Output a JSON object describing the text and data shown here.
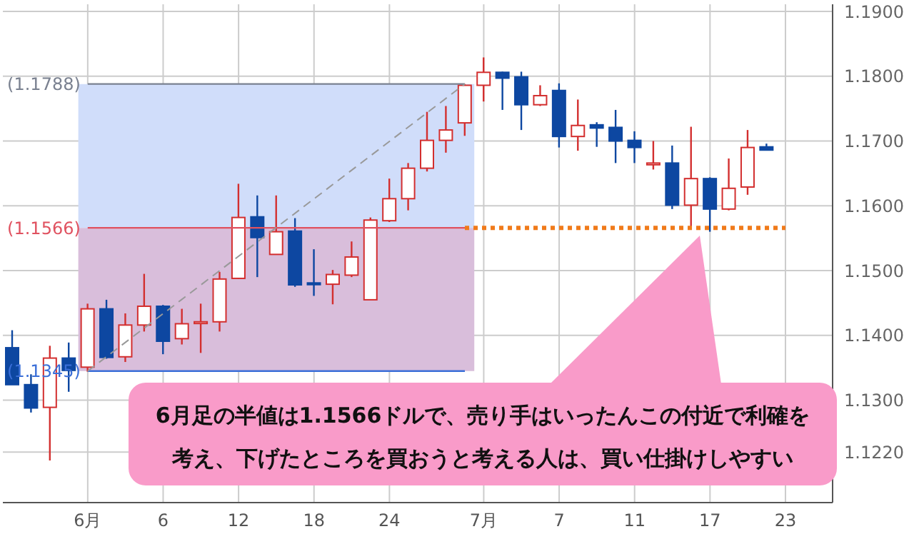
{
  "chart_data": {
    "type": "candlestick",
    "categories": [
      null,
      null,
      null,
      null,
      "6月",
      null,
      null,
      null,
      "6",
      null,
      null,
      null,
      "12",
      null,
      null,
      null,
      "18",
      null,
      null,
      null,
      "24",
      null,
      null,
      null,
      null,
      "7月",
      null,
      null,
      null,
      "7",
      null,
      null,
      null,
      "11",
      null,
      null,
      null,
      "17",
      null,
      null,
      null,
      "23",
      null,
      null
    ],
    "ohlc": [
      [
        1.1381,
        1.1408,
        1.1324,
        1.1324
      ],
      [
        1.1324,
        1.134,
        1.1281,
        1.1288
      ],
      [
        1.1289,
        1.1384,
        1.1207,
        1.1365
      ],
      [
        1.1365,
        1.1389,
        1.1313,
        1.1346
      ],
      [
        1.1351,
        1.1449,
        1.1344,
        1.1441
      ],
      [
        1.1441,
        1.1455,
        1.1364,
        1.1366
      ],
      [
        1.1367,
        1.1434,
        1.1359,
        1.1416
      ],
      [
        1.1416,
        1.1495,
        1.1406,
        1.1445
      ],
      [
        1.1445,
        1.1447,
        1.1371,
        1.1391
      ],
      [
        1.1395,
        1.1441,
        1.1386,
        1.1418
      ],
      [
        1.142,
        1.1449,
        1.1373,
        1.1421
      ],
      [
        1.1421,
        1.1498,
        1.1406,
        1.1487
      ],
      [
        1.1488,
        1.1634,
        1.1487,
        1.1582
      ],
      [
        1.1583,
        1.1616,
        1.149,
        1.1551
      ],
      [
        1.1525,
        1.1616,
        1.1525,
        1.156
      ],
      [
        1.1561,
        1.1581,
        1.1475,
        1.1478
      ],
      [
        1.1481,
        1.1533,
        1.1461,
        1.1479
      ],
      [
        1.1479,
        1.1501,
        1.1448,
        1.1494
      ],
      [
        1.1493,
        1.1545,
        1.149,
        1.1521
      ],
      [
        1.1455,
        1.1582,
        1.1455,
        1.1578
      ],
      [
        1.1577,
        1.1642,
        1.1575,
        1.1611
      ],
      [
        1.1611,
        1.1666,
        1.1593,
        1.1658
      ],
      [
        1.1658,
        1.1745,
        1.1653,
        1.1701
      ],
      [
        1.1701,
        1.1754,
        1.1682,
        1.1717
      ],
      [
        1.1728,
        1.1788,
        1.1708,
        1.1786
      ],
      [
        1.1786,
        1.1829,
        1.1761,
        1.1806
      ],
      [
        1.1806,
        1.1807,
        1.1748,
        1.1797
      ],
      [
        1.1799,
        1.1807,
        1.1717,
        1.1756
      ],
      [
        1.1756,
        1.1786,
        1.1754,
        1.177
      ],
      [
        1.1778,
        1.1789,
        1.169,
        1.1707
      ],
      [
        1.1707,
        1.1764,
        1.1685,
        1.1724
      ],
      [
        1.1725,
        1.1729,
        1.1691,
        1.172
      ],
      [
        1.1721,
        1.1748,
        1.1666,
        1.17
      ],
      [
        1.1701,
        1.1715,
        1.1666,
        1.169
      ],
      [
        1.1665,
        1.17,
        1.1656,
        1.1666
      ],
      [
        1.1666,
        1.1693,
        1.1595,
        1.1601
      ],
      [
        1.1601,
        1.1722,
        1.1563,
        1.1642
      ],
      [
        1.1642,
        1.1644,
        1.156,
        1.1595
      ],
      [
        1.1595,
        1.1673,
        1.1593,
        1.1627
      ],
      [
        1.1629,
        1.1717,
        1.1617,
        1.169
      ],
      [
        1.1691,
        1.1696,
        1.1686,
        1.1686
      ],
      null,
      null,
      null
    ],
    "series": [
      {
        "type": "line",
        "values": [
          null,
          null,
          null,
          null,
          1.1345,
          null,
          null,
          null,
          null,
          null,
          null,
          null,
          null,
          null,
          null,
          null,
          null,
          null,
          null,
          null,
          null,
          null,
          null,
          null,
          1.1788,
          null,
          null,
          null,
          null,
          null,
          null,
          null,
          null,
          null,
          null,
          null,
          null,
          null,
          null,
          null,
          null,
          null,
          null,
          null
        ],
        "color": "#999999",
        "line_style": "dashed"
      }
    ],
    "ylim": [
      1.1142,
      1.1911
    ],
    "yticks": [
      {
        "value": 1.122,
        "label": "1.1220"
      },
      {
        "value": 1.13,
        "label": "1.1300"
      },
      {
        "value": 1.14,
        "label": "1.1400"
      },
      {
        "value": 1.15,
        "label": "1.1500"
      },
      {
        "value": 1.16,
        "label": "1.1600"
      },
      {
        "value": 1.17,
        "label": "1.1700"
      },
      {
        "value": 1.18,
        "label": "1.1800"
      },
      {
        "value": 1.19,
        "label": "1.1900"
      }
    ],
    "bands": [
      {
        "axis": "y",
        "from": 1.1566,
        "to": 1.1788,
        "color": "#d0ddfa"
      },
      {
        "axis": "y",
        "from": 1.1345,
        "to": 1.1566,
        "color": "#d9bedb"
      }
    ],
    "ref_lines": [
      {
        "axis": "y",
        "value": 1.1788,
        "label": "(1.1788)",
        "color": "#7a8190"
      },
      {
        "axis": "y",
        "value": 1.1566,
        "label": "(1.1566)",
        "color": "#e05260"
      },
      {
        "axis": "y",
        "value": 1.1345,
        "label": "(1.1345)",
        "color": "#3b6fd8"
      },
      {
        "axis": "y",
        "value": 1.1566,
        "color": "#f07a1a",
        "line_style": "dotted"
      }
    ],
    "annotations": [
      "6月足の半値は1.1566ドルで、売り手はいったんこの付近で利確を考え、下げたところを買おうと考える人は、買い仕掛けしやすい"
    ],
    "grid": true
  }
}
